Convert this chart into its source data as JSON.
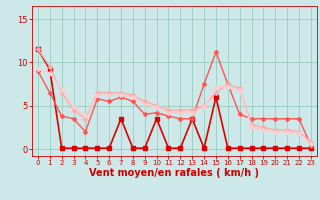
{
  "x": [
    0,
    1,
    2,
    3,
    4,
    5,
    6,
    7,
    8,
    9,
    10,
    11,
    12,
    13,
    14,
    15,
    16,
    17,
    18,
    19,
    20,
    21,
    22,
    23
  ],
  "series": [
    {
      "name": "line_darkred",
      "color": "#dd0000",
      "linewidth": 1.2,
      "marker": "s",
      "markersize": 2.5,
      "y": [
        11.5,
        9.2,
        0.1,
        0.1,
        0.1,
        0.1,
        0.1,
        3.5,
        0.1,
        0.1,
        3.5,
        0.1,
        0.1,
        3.5,
        0.1,
        6.0,
        0.1,
        0.1,
        0.1,
        0.1,
        0.1,
        0.1,
        0.1,
        0.1
      ]
    },
    {
      "name": "line_medred",
      "color": "#ff5555",
      "linewidth": 1.0,
      "marker": "D",
      "markersize": 2.0,
      "y": [
        9.0,
        6.5,
        3.8,
        3.5,
        2.0,
        5.8,
        5.5,
        6.0,
        5.5,
        4.0,
        4.2,
        3.8,
        3.5,
        3.5,
        7.5,
        11.2,
        7.5,
        4.0,
        3.5,
        3.5,
        3.5,
        3.5,
        3.5,
        0.4
      ]
    },
    {
      "name": "line_pink1",
      "color": "#ffaaaa",
      "linewidth": 1.0,
      "marker": "D",
      "markersize": 2.0,
      "y": [
        11.5,
        9.5,
        6.5,
        4.5,
        3.5,
        6.5,
        6.5,
        6.5,
        6.2,
        5.5,
        5.0,
        4.5,
        4.5,
        4.5,
        5.0,
        6.5,
        7.5,
        7.0,
        2.8,
        2.5,
        2.2,
        2.2,
        2.0,
        0.8
      ]
    },
    {
      "name": "line_pink2",
      "color": "#ffcccc",
      "linewidth": 1.0,
      "marker": "D",
      "markersize": 2.0,
      "y": [
        9.2,
        8.8,
        6.8,
        4.8,
        3.8,
        6.2,
        6.2,
        6.2,
        6.0,
        5.2,
        4.8,
        4.2,
        4.2,
        4.2,
        4.8,
        7.2,
        7.2,
        6.8,
        2.5,
        2.2,
        2.0,
        2.0,
        1.8,
        0.6
      ]
    }
  ],
  "xlim": [
    -0.5,
    23.5
  ],
  "ylim": [
    -0.8,
    16.5
  ],
  "yticks": [
    0,
    5,
    10,
    15
  ],
  "xticks": [
    0,
    1,
    2,
    3,
    4,
    5,
    6,
    7,
    8,
    9,
    10,
    11,
    12,
    13,
    14,
    15,
    16,
    17,
    18,
    19,
    20,
    21,
    22,
    23
  ],
  "xlabel": "Vent moyen/en rafales ( km/h )",
  "xlabel_color": "#cc0000",
  "xlabel_fontsize": 7,
  "bg_color": "#cce8e8",
  "grid_color": "#99ccbb",
  "tick_color": "#cc0000",
  "tick_fontsize": 6
}
